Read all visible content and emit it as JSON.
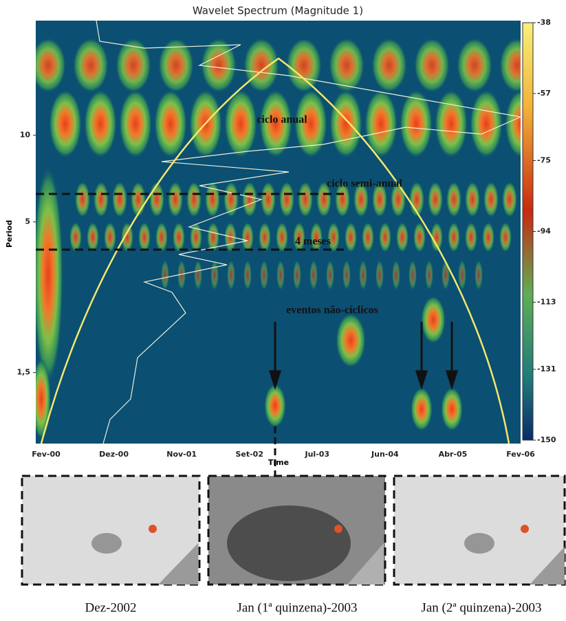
{
  "chart_data": {
    "type": "heatmap",
    "title": "Wavelet Spectrum (Magnitude 1)",
    "x_label": "Time",
    "y_label": "Period",
    "categories": [
      "Fev-00",
      "Dez-00",
      "Nov-01",
      "Set-02",
      "Jul-03",
      "Jun-04",
      "Abr-05",
      "Fev-06"
    ],
    "y_log": true,
    "ylim": [
      0.85,
      25
    ],
    "yticks": [
      10,
      5,
      {
        "value": 1.5,
        "label": "1,5"
      }
    ],
    "colorbar_lim": [
      -150,
      -38
    ],
    "colorbar_ticks": [
      -38,
      -57,
      -75,
      -94,
      -113,
      -131,
      -150
    ],
    "annotations": [
      "ciclo anual",
      "ciclo semi-anual",
      "4 meses",
      "eventos não-cíclicos"
    ],
    "panels": [
      "Dez-2002",
      "Jan (1ª quinzena)-2003",
      "Jan (2ª quinzena)-2003"
    ]
  }
}
